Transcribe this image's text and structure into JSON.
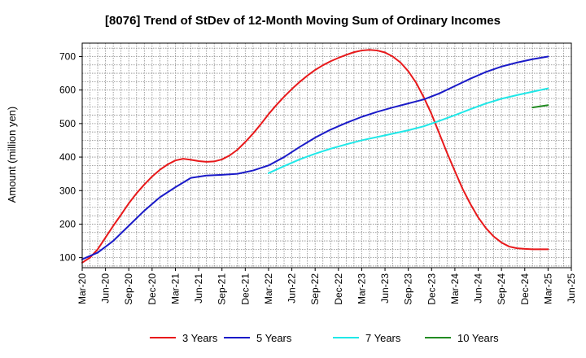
{
  "chart_data": {
    "type": "line",
    "title": "[8076]  Trend of StDev of 12-Month Moving Sum of Ordinary Incomes",
    "ylabel": "Amount (million yen)",
    "xlabel": "",
    "ylim": [
      70,
      740
    ],
    "yticks": [
      100,
      200,
      300,
      400,
      500,
      600,
      700
    ],
    "x_tick_labels": [
      "Mar-20",
      "Jun-20",
      "Sep-20",
      "Dec-20",
      "Mar-21",
      "Jun-21",
      "Sep-21",
      "Dec-21",
      "Mar-22",
      "Jun-22",
      "Sep-22",
      "Dec-22",
      "Mar-23",
      "Jun-23",
      "Sep-23",
      "Dec-23",
      "Mar-24",
      "Jun-24",
      "Sep-24",
      "Dec-24",
      "Mar-25",
      "Jun-25"
    ],
    "grid": true,
    "legend_position": "bottom",
    "series": [
      {
        "name": "3 Years",
        "color": "#e8191b",
        "points": [
          [
            "Mar-20",
            85
          ],
          [
            "Apr-20",
            100
          ],
          [
            "May-20",
            125
          ],
          [
            "Jun-20",
            160
          ],
          [
            "Jul-20",
            195
          ],
          [
            "Aug-20",
            228
          ],
          [
            "Sep-20",
            262
          ],
          [
            "Oct-20",
            292
          ],
          [
            "Nov-20",
            318
          ],
          [
            "Dec-20",
            342
          ],
          [
            "Jan-21",
            362
          ],
          [
            "Feb-21",
            378
          ],
          [
            "Mar-21",
            390
          ],
          [
            "Apr-21",
            395
          ],
          [
            "May-21",
            392
          ],
          [
            "Jun-21",
            388
          ],
          [
            "Jul-21",
            386
          ],
          [
            "Aug-21",
            387
          ],
          [
            "Sep-21",
            393
          ],
          [
            "Oct-21",
            405
          ],
          [
            "Nov-21",
            422
          ],
          [
            "Dec-21",
            445
          ],
          [
            "Jan-22",
            470
          ],
          [
            "Feb-22",
            498
          ],
          [
            "Mar-22",
            528
          ],
          [
            "Apr-22",
            555
          ],
          [
            "May-22",
            580
          ],
          [
            "Jun-22",
            603
          ],
          [
            "Jul-22",
            624
          ],
          [
            "Aug-22",
            643
          ],
          [
            "Sep-22",
            660
          ],
          [
            "Oct-22",
            674
          ],
          [
            "Nov-22",
            686
          ],
          [
            "Dec-22",
            696
          ],
          [
            "Jan-23",
            705
          ],
          [
            "Feb-23",
            713
          ],
          [
            "Mar-23",
            718
          ],
          [
            "Apr-23",
            720
          ],
          [
            "May-23",
            718
          ],
          [
            "Jun-23",
            712
          ],
          [
            "Jul-23",
            700
          ],
          [
            "Aug-23",
            682
          ],
          [
            "Sep-23",
            656
          ],
          [
            "Oct-23",
            622
          ],
          [
            "Nov-23",
            578
          ],
          [
            "Dec-23",
            528
          ],
          [
            "Jan-24",
            470
          ],
          [
            "Feb-24",
            412
          ],
          [
            "Mar-24",
            358
          ],
          [
            "Apr-24",
            305
          ],
          [
            "May-24",
            260
          ],
          [
            "Jun-24",
            220
          ],
          [
            "Jul-24",
            188
          ],
          [
            "Aug-24",
            163
          ],
          [
            "Sep-24",
            145
          ],
          [
            "Oct-24",
            133
          ],
          [
            "Nov-24",
            128
          ],
          [
            "Dec-24",
            126
          ],
          [
            "Jan-25",
            125
          ],
          [
            "Feb-25",
            125
          ],
          [
            "Mar-25",
            125
          ]
        ]
      },
      {
        "name": "5 Years",
        "color": "#1a1ac8",
        "points": [
          [
            "Mar-20",
            95
          ],
          [
            "May-20",
            115
          ],
          [
            "Jul-20",
            150
          ],
          [
            "Sep-20",
            195
          ],
          [
            "Nov-20",
            240
          ],
          [
            "Jan-21",
            280
          ],
          [
            "Mar-21",
            310
          ],
          [
            "May-21",
            338
          ],
          [
            "Jul-21",
            345
          ],
          [
            "Sep-21",
            347
          ],
          [
            "Nov-21",
            350
          ],
          [
            "Jan-22",
            360
          ],
          [
            "Mar-22",
            375
          ],
          [
            "May-22",
            400
          ],
          [
            "Jul-22",
            430
          ],
          [
            "Sep-22",
            458
          ],
          [
            "Nov-22",
            482
          ],
          [
            "Jan-23",
            502
          ],
          [
            "Mar-23",
            520
          ],
          [
            "May-23",
            535
          ],
          [
            "Jul-23",
            548
          ],
          [
            "Sep-23",
            560
          ],
          [
            "Nov-23",
            572
          ],
          [
            "Jan-24",
            590
          ],
          [
            "Mar-24",
            612
          ],
          [
            "May-24",
            634
          ],
          [
            "Jul-24",
            654
          ],
          [
            "Sep-24",
            670
          ],
          [
            "Nov-24",
            682
          ],
          [
            "Jan-25",
            692
          ],
          [
            "Mar-25",
            700
          ]
        ]
      },
      {
        "name": "7 Years",
        "color": "#20e8e8",
        "points": [
          [
            "Mar-22",
            352
          ],
          [
            "May-22",
            373
          ],
          [
            "Jul-22",
            393
          ],
          [
            "Sep-22",
            410
          ],
          [
            "Nov-22",
            425
          ],
          [
            "Jan-23",
            438
          ],
          [
            "Mar-23",
            450
          ],
          [
            "May-23",
            460
          ],
          [
            "Jul-23",
            470
          ],
          [
            "Sep-23",
            480
          ],
          [
            "Nov-23",
            492
          ],
          [
            "Jan-24",
            508
          ],
          [
            "Mar-24",
            525
          ],
          [
            "May-24",
            543
          ],
          [
            "Jul-24",
            560
          ],
          [
            "Sep-24",
            574
          ],
          [
            "Nov-24",
            585
          ],
          [
            "Jan-25",
            595
          ],
          [
            "Mar-25",
            605
          ]
        ]
      },
      {
        "name": "10 Years",
        "color": "#228b22",
        "points": [
          [
            "Jan-25",
            548
          ],
          [
            "Mar-25",
            555
          ]
        ]
      }
    ]
  }
}
